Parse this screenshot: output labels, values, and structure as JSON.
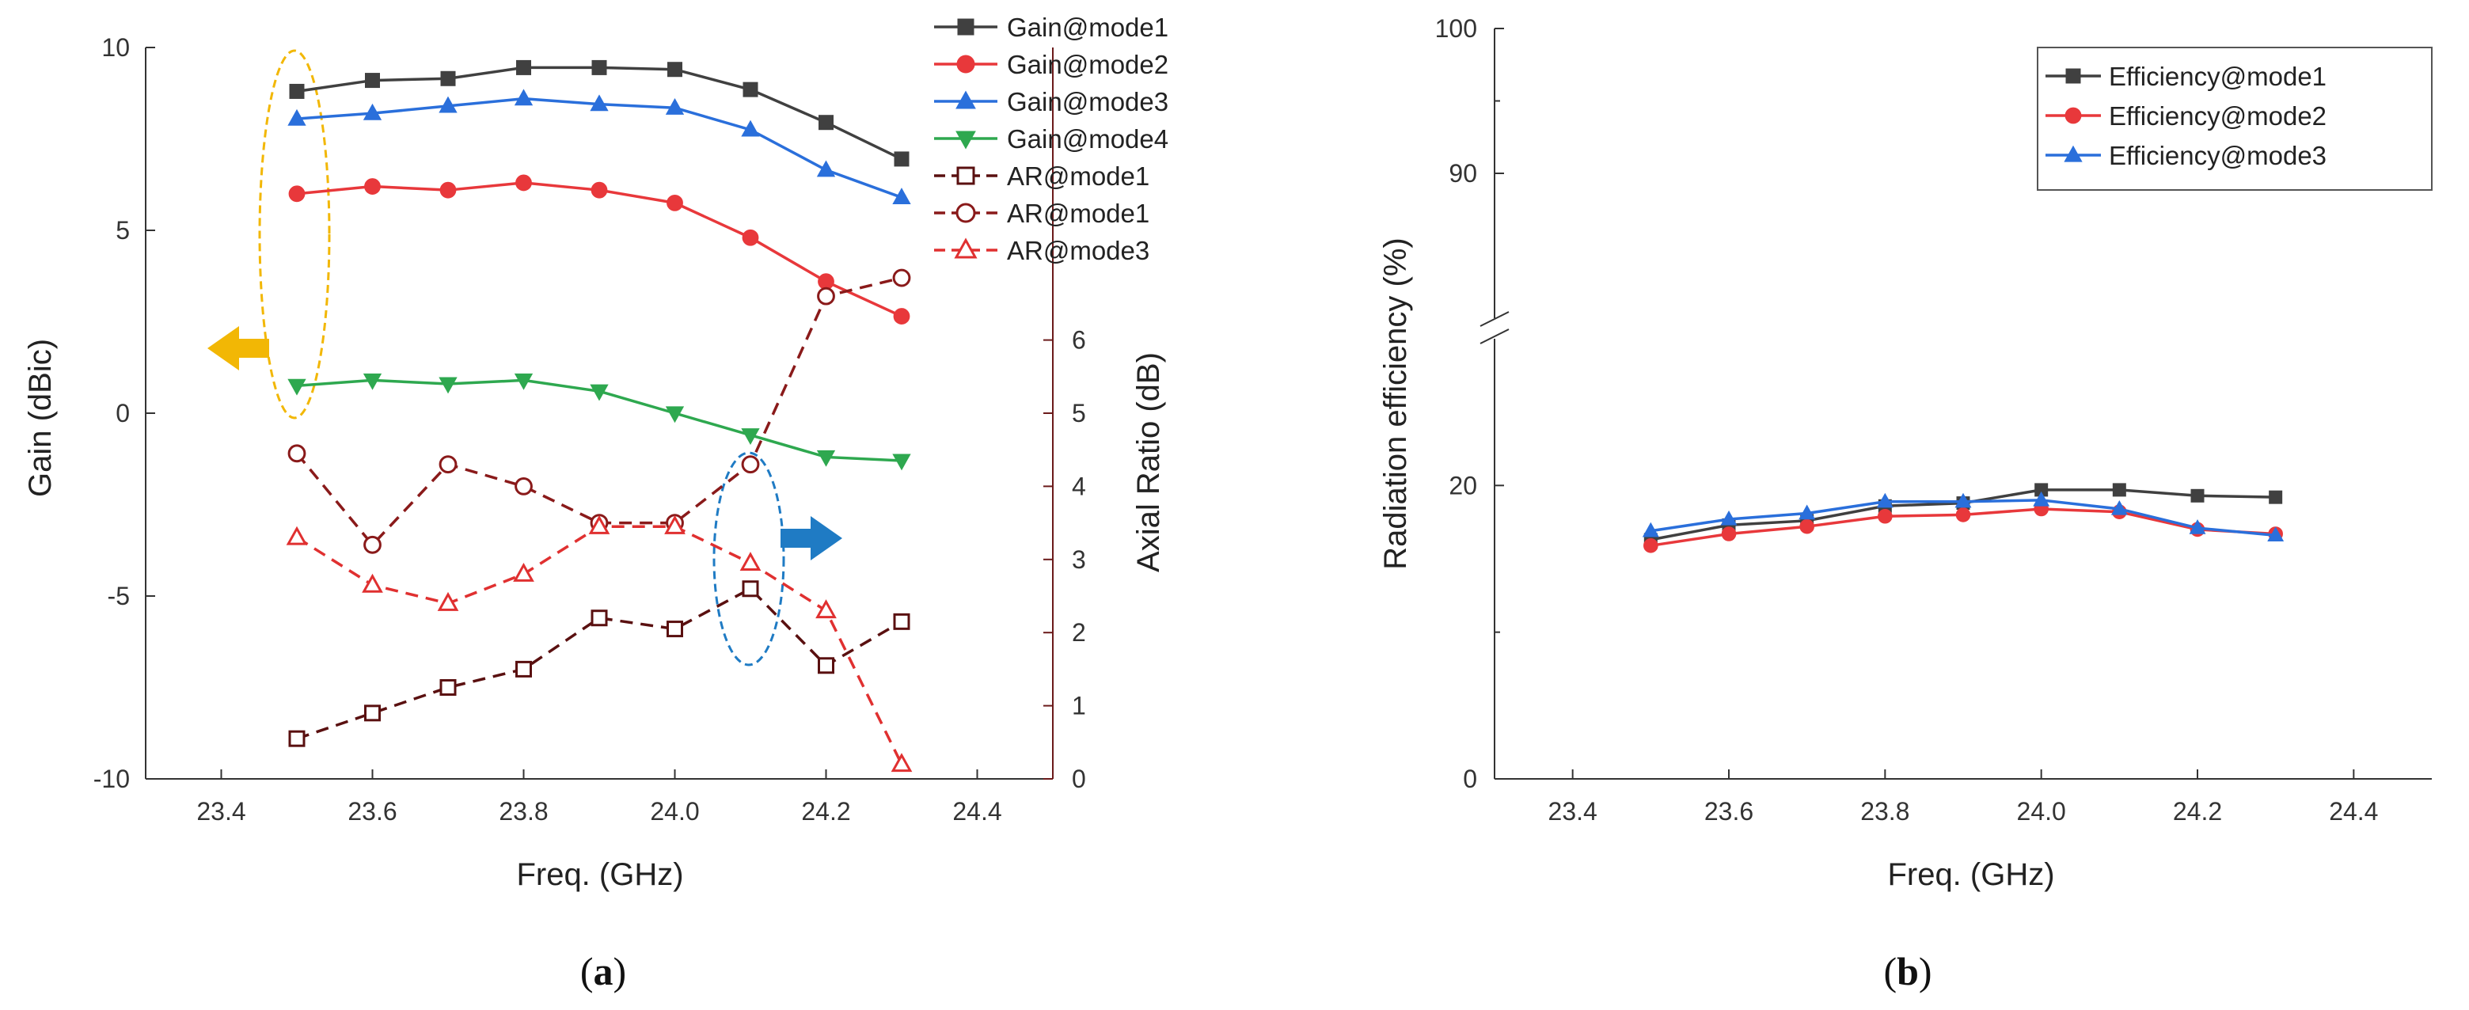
{
  "chart_data": [
    {
      "panel": "(a)",
      "panel_letter": "a",
      "type": "line",
      "xlabel": "Freq. (GHz)",
      "ylabel": "Gain (dBic)",
      "y2label": "Axial Ratio (dB)",
      "xlim": [
        23.3,
        24.5
      ],
      "ylim": [
        -10,
        10
      ],
      "y2lim": [
        0,
        10
      ],
      "xticks": [
        "23.4",
        "23.6",
        "23.8",
        "24.0",
        "24.2",
        "24.4"
      ],
      "yticks": [
        "10",
        "5",
        "0",
        "-5",
        "-10"
      ],
      "y2ticks": [
        "0",
        "1",
        "2",
        "3",
        "4",
        "5",
        "6"
      ],
      "x": [
        23.5,
        23.6,
        23.7,
        23.8,
        23.9,
        24.0,
        24.1,
        24.2,
        24.3
      ],
      "series": [
        {
          "name": "Gain@mode1",
          "axis": "left",
          "color": "#404040",
          "marker": "square",
          "filled": true,
          "dashed": false,
          "values": [
            8.8,
            9.1,
            9.15,
            9.45,
            9.45,
            9.4,
            8.85,
            7.95,
            6.95
          ]
        },
        {
          "name": "Gain@mode2",
          "axis": "left",
          "color": "#e8383b",
          "marker": "circle",
          "filled": true,
          "dashed": false,
          "values": [
            6.0,
            6.2,
            6.1,
            6.3,
            6.1,
            5.75,
            4.8,
            3.6,
            2.65
          ]
        },
        {
          "name": "Gain@mode3",
          "axis": "left",
          "color": "#2a6fdb",
          "marker": "triangle-up",
          "filled": true,
          "dashed": false,
          "values": [
            8.05,
            8.2,
            8.4,
            8.6,
            8.45,
            8.35,
            7.75,
            6.65,
            5.9
          ]
        },
        {
          "name": "Gain@mode4",
          "axis": "left",
          "color": "#2ea84f",
          "marker": "triangle-down",
          "filled": true,
          "dashed": false,
          "values": [
            0.75,
            0.9,
            0.8,
            0.9,
            0.6,
            0.0,
            -0.6,
            -1.2,
            -1.3
          ]
        },
        {
          "name": "AR@mode1",
          "axis": "right",
          "color": "#5a1010",
          "marker": "square",
          "filled": false,
          "dashed": true,
          "values": [
            0.55,
            0.9,
            1.25,
            1.5,
            2.2,
            2.05,
            2.6,
            1.55,
            2.15
          ]
        },
        {
          "name": "AR@mode1",
          "axis": "right",
          "color": "#8a1a1a",
          "marker": "circle",
          "filled": false,
          "dashed": true,
          "values": [
            4.45,
            3.2,
            4.3,
            4.0,
            3.5,
            3.5,
            4.3,
            6.6,
            6.85
          ]
        },
        {
          "name": "AR@mode3",
          "axis": "right",
          "color": "#e03030",
          "marker": "triangle-up",
          "filled": false,
          "dashed": true,
          "values": [
            3.3,
            2.65,
            2.4,
            2.8,
            3.45,
            3.45,
            2.95,
            2.3,
            0.2
          ]
        }
      ]
    },
    {
      "panel": "(b)",
      "panel_letter": "b",
      "type": "line",
      "xlabel": "Freq. (GHz)",
      "ylabel": "Radiation efficiency (%)",
      "xlim": [
        23.3,
        24.5
      ],
      "ylim": [
        0,
        100
      ],
      "axis_break": [
        30,
        80
      ],
      "xticks": [
        "23.4",
        "23.6",
        "23.8",
        "24.0",
        "24.2",
        "24.4"
      ],
      "yticks": [
        "0",
        "20",
        "90",
        "100"
      ],
      "x": [
        23.5,
        23.6,
        23.7,
        23.8,
        23.9,
        24.0,
        24.1,
        24.2,
        24.3
      ],
      "legend_position": "top-right",
      "series": [
        {
          "name": "Efficiency@mode1",
          "color": "#404040",
          "marker": "square",
          "values": [
            16.3,
            17.3,
            17.6,
            18.6,
            18.8,
            19.7,
            19.7,
            19.3,
            19.2
          ]
        },
        {
          "name": "Efficiency@mode2",
          "color": "#e8383b",
          "marker": "circle",
          "values": [
            15.9,
            16.7,
            17.2,
            17.9,
            18.0,
            18.4,
            18.2,
            17.0,
            16.7
          ]
        },
        {
          "name": "Efficiency@mode3",
          "color": "#2a6fdb",
          "marker": "triangle-up",
          "values": [
            16.9,
            17.7,
            18.1,
            18.9,
            18.9,
            19.0,
            18.4,
            17.1,
            16.6
          ]
        }
      ]
    }
  ]
}
